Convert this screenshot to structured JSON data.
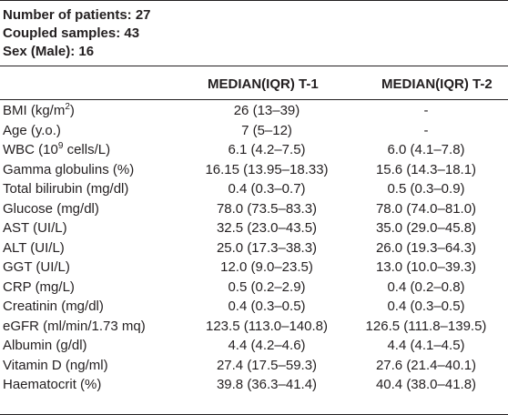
{
  "summary": {
    "patients": "Number of patients: 27",
    "samples": "Coupled samples: 43",
    "sex": "Sex (Male): 16"
  },
  "columns": {
    "t1": "MEDIAN(IQR) T-1",
    "t2": "MEDIAN(IQR) T-2"
  },
  "rows": [
    {
      "label_pre": "BMI (kg/m",
      "label_sup": "2",
      "label_post": ")",
      "t1": "26 (13–39)",
      "t2": "-"
    },
    {
      "label_pre": "Age (y.o.)",
      "label_sup": "",
      "label_post": "",
      "t1": "7 (5–12)",
      "t2": "-"
    },
    {
      "label_pre": "WBC (10",
      "label_sup": "9",
      "label_post": " cells/L)",
      "t1": "6.1 (4.2–7.5)",
      "t2": "6.0 (4.1–7.8)"
    },
    {
      "label_pre": "Gamma globulins (%)",
      "label_sup": "",
      "label_post": "",
      "t1": "16.15 (13.95–18.33)",
      "t2": "15.6 (14.3–18.1)"
    },
    {
      "label_pre": "Total bilirubin (mg/dl)",
      "label_sup": "",
      "label_post": "",
      "t1": "0.4 (0.3–0.7)",
      "t2": "0.5 (0.3–0.9)"
    },
    {
      "label_pre": "Glucose (mg/dl)",
      "label_sup": "",
      "label_post": "",
      "t1": "78.0 (73.5–83.3)",
      "t2": "78.0 (74.0–81.0)"
    },
    {
      "label_pre": "AST (UI/L)",
      "label_sup": "",
      "label_post": "",
      "t1": "32.5 (23.0–43.5)",
      "t2": "35.0 (29.0–45.8)"
    },
    {
      "label_pre": "ALT (UI/L)",
      "label_sup": "",
      "label_post": "",
      "t1": "25.0 (17.3–38.3)",
      "t2": "26.0 (19.3–64.3)"
    },
    {
      "label_pre": "GGT (UI/L)",
      "label_sup": "",
      "label_post": "",
      "t1": "12.0 (9.0–23.5)",
      "t2": "13.0 (10.0–39.3)"
    },
    {
      "label_pre": "CRP (mg/L)",
      "label_sup": "",
      "label_post": "",
      "t1": "0.5 (0.2–2.9)",
      "t2": "0.4 (0.2–0.8)"
    },
    {
      "label_pre": "Creatinin (mg/dl)",
      "label_sup": "",
      "label_post": "",
      "t1": "0.4 (0.3–0.5)",
      "t2": "0.4 (0.3–0.5)"
    },
    {
      "label_pre": "eGFR (ml/min/1.73 mq)",
      "label_sup": "",
      "label_post": "",
      "t1": "123.5 (113.0–140.8)",
      "t2": "126.5 (111.8–139.5)"
    },
    {
      "label_pre": "Albumin (g/dl)",
      "label_sup": "",
      "label_post": "",
      "t1": "4.4 (4.2–4.6)",
      "t2": "4.4 (4.1–4.5)"
    },
    {
      "label_pre": "Vitamin D (ng/ml)",
      "label_sup": "",
      "label_post": "",
      "t1": "27.4 (17.5–59.3)",
      "t2": "27.6 (21.4–40.1)"
    },
    {
      "label_pre": "Haematocrit (%)",
      "label_sup": "",
      "label_post": "",
      "t1": "39.8 (36.3–41.4)",
      "t2": "40.4 (38.0–41.8)"
    }
  ]
}
